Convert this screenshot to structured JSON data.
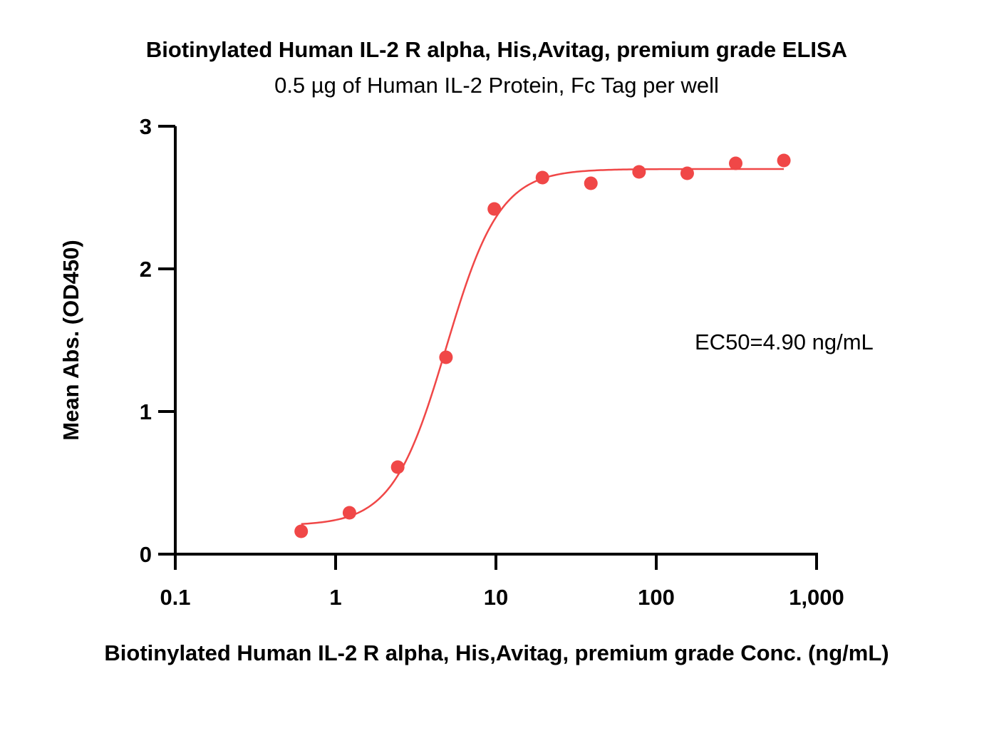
{
  "chart_data": {
    "type": "scatter",
    "title": "Biotinylated Human IL-2 R alpha, His,Avitag, premium grade ELISA",
    "subtitle": "0.5 µg of Human IL-2 Protein, Fc Tag per well",
    "xlabel": "Biotinylated Human IL-2 R alpha, His,Avitag, premium grade Conc. (ng/mL)",
    "ylabel": "Mean Abs. (OD450)",
    "x_scale": "log",
    "xlim": [
      0.1,
      1000
    ],
    "ylim": [
      0,
      3
    ],
    "x_ticks": [
      "0.1",
      "1",
      "10",
      "100",
      "1,000"
    ],
    "x_tick_values": [
      0.1,
      1,
      10,
      100,
      1000
    ],
    "y_ticks": [
      "0",
      "1",
      "2",
      "3"
    ],
    "y_tick_values": [
      0,
      1,
      2,
      3
    ],
    "grid": false,
    "annotation": "EC50=4.90 ng/mL",
    "color": "#f04747",
    "series": [
      {
        "points": [
          {
            "x": 0.61,
            "y": 0.16
          },
          {
            "x": 1.22,
            "y": 0.29
          },
          {
            "x": 2.44,
            "y": 0.61
          },
          {
            "x": 4.88,
            "y": 1.38
          },
          {
            "x": 9.77,
            "y": 2.42
          },
          {
            "x": 19.5,
            "y": 2.64
          },
          {
            "x": 39.1,
            "y": 2.6
          },
          {
            "x": 78.1,
            "y": 2.68
          },
          {
            "x": 156,
            "y": 2.67
          },
          {
            "x": 313,
            "y": 2.74
          },
          {
            "x": 625,
            "y": 2.76
          }
        ],
        "fit": {
          "model": "4PL",
          "bottom": 0.2,
          "top": 2.7,
          "ec50": 4.9,
          "hill": 2.6
        }
      }
    ]
  }
}
